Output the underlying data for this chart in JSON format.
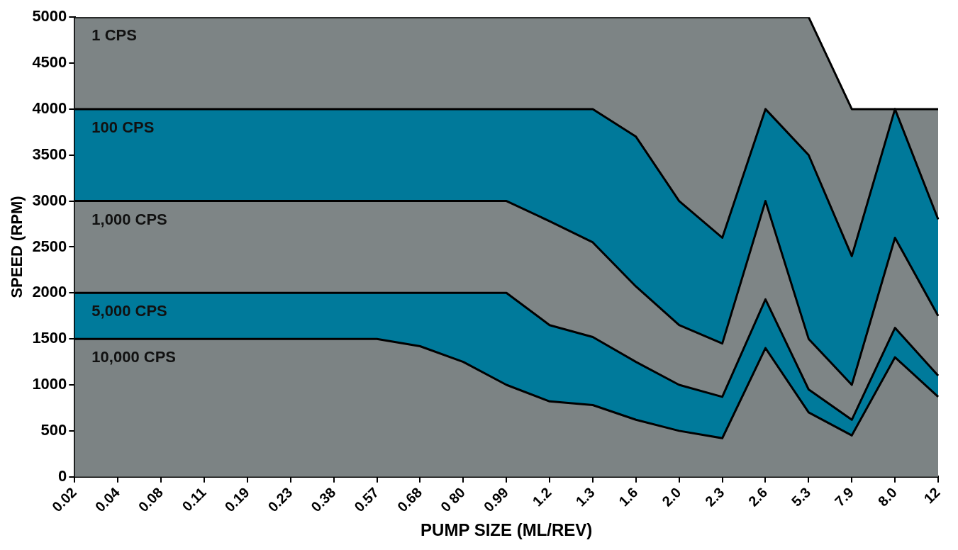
{
  "chart_data": {
    "type": "area",
    "xlabel": "PUMP SIZE (ML/REV)",
    "ylabel": "SPEED (RPM)",
    "categories": [
      "0.02",
      "0.04",
      "0.08",
      "0.11",
      "0.19",
      "0.23",
      "0.38",
      "0.57",
      "0.68",
      "0 80",
      "0.99",
      "1.2",
      "1.3",
      "1.6",
      "2.0",
      "2.3",
      "2.6",
      "5.3",
      "7.9",
      "8.0",
      "12"
    ],
    "ylim": [
      0,
      5000
    ],
    "yticks": [
      0,
      500,
      1000,
      1500,
      2000,
      2500,
      3000,
      3500,
      4000,
      4500,
      5000
    ],
    "grid": false,
    "legend": false,
    "series": [
      {
        "name": "1 CPS",
        "color": "#7d8485",
        "values": [
          5000,
          5000,
          5000,
          5000,
          5000,
          5000,
          5000,
          5000,
          5000,
          5000,
          5000,
          5000,
          5000,
          5000,
          5000,
          5000,
          5000,
          5000,
          4000,
          4000,
          4000
        ]
      },
      {
        "name": "100 CPS",
        "color": "#00799a",
        "values": [
          4000,
          4000,
          4000,
          4000,
          4000,
          4000,
          4000,
          4000,
          4000,
          4000,
          4000,
          4000,
          4000,
          3700,
          3000,
          2600,
          4000,
          3500,
          2400,
          4000,
          2800
        ]
      },
      {
        "name": "1,000 CPS",
        "color": "#7e8586",
        "values": [
          3000,
          3000,
          3000,
          3000,
          3000,
          3000,
          3000,
          3000,
          3000,
          3000,
          3000,
          2780,
          2550,
          2070,
          1650,
          1450,
          3000,
          1500,
          1000,
          2600,
          1750
        ]
      },
      {
        "name": "5,000 CPS",
        "color": "#007a9b",
        "values": [
          2000,
          2000,
          2000,
          2000,
          2000,
          2000,
          2000,
          2000,
          2000,
          2000,
          2000,
          1650,
          1520,
          1250,
          1000,
          870,
          1930,
          950,
          620,
          1620,
          1100
        ]
      },
      {
        "name": "10,000 CPS",
        "color": "#7c8384",
        "values": [
          1500,
          1500,
          1500,
          1500,
          1500,
          1500,
          1500,
          1500,
          1420,
          1250,
          1000,
          820,
          780,
          620,
          500,
          420,
          1400,
          700,
          450,
          1300,
          870
        ]
      }
    ]
  }
}
